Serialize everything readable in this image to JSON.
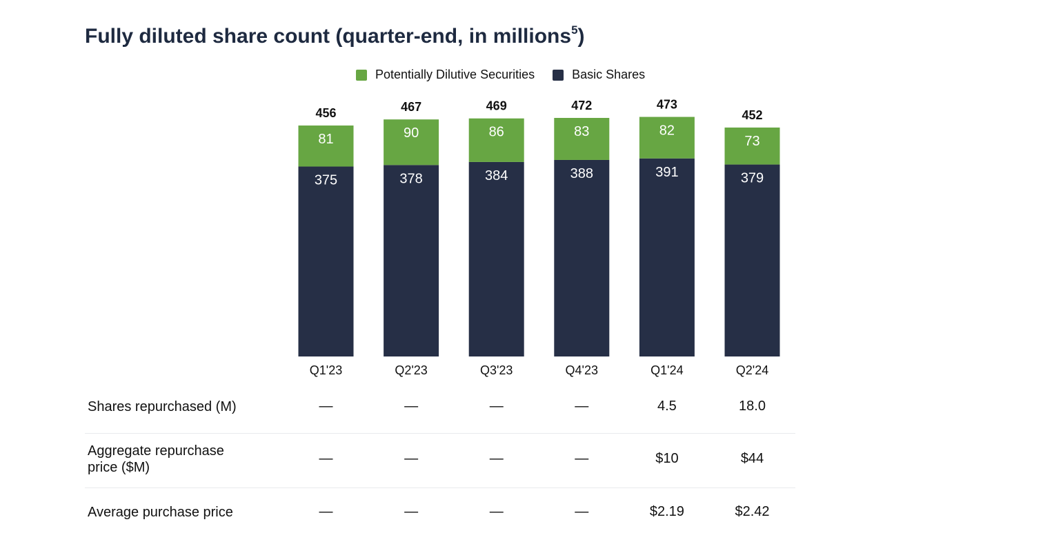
{
  "title": "Fully diluted share count (quarter-end, in millions",
  "title_footnote": "5",
  "title_close": ")",
  "colors": {
    "dilutive": "#67a643",
    "basic": "#262f46",
    "title": "#1e2a40"
  },
  "chart_data": {
    "type": "bar",
    "stacked": true,
    "categories": [
      "Q1'23",
      "Q2'23",
      "Q3'23",
      "Q4'23",
      "Q1'24",
      "Q2'24"
    ],
    "series": [
      {
        "name": "Basic Shares",
        "values": [
          375,
          378,
          384,
          388,
          391,
          379
        ]
      },
      {
        "name": "Potentially Dilutive Securities",
        "values": [
          81,
          90,
          86,
          83,
          82,
          73
        ]
      }
    ],
    "totals": [
      456,
      467,
      469,
      472,
      473,
      452
    ],
    "legend": [
      {
        "label": "Potentially Dilutive Securities",
        "color": "#67a643"
      },
      {
        "label": "Basic Shares",
        "color": "#262f46"
      }
    ],
    "legend_position": "top-center",
    "grid": false
  },
  "table": {
    "rows": [
      {
        "label": "Shares repurchased (M)",
        "values": [
          "—",
          "—",
          "—",
          "—",
          "4.5",
          "18.0"
        ]
      },
      {
        "label": "Aggregate repurchase price ($M)",
        "values": [
          "—",
          "—",
          "—",
          "—",
          "$10",
          "$44"
        ]
      },
      {
        "label": "Average purchase price",
        "values": [
          "—",
          "—",
          "—",
          "—",
          "$2.19",
          "$2.42"
        ]
      }
    ]
  }
}
